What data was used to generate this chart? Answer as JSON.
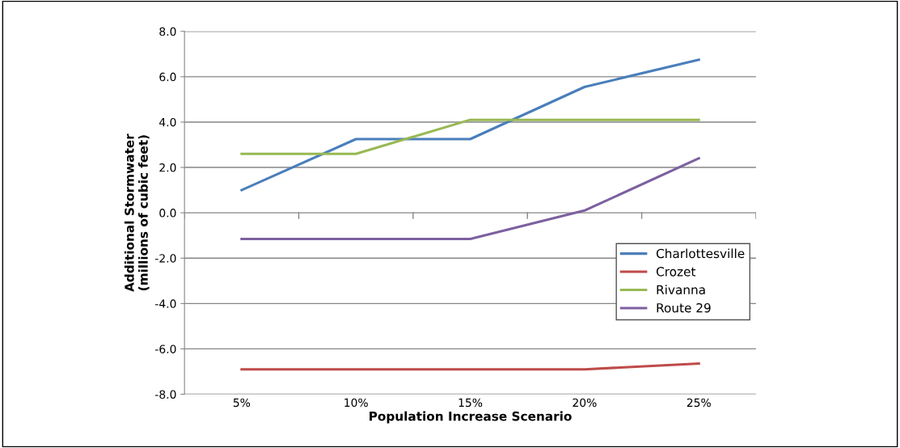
{
  "chart_data": {
    "type": "line",
    "xlabel": "Population Increase Scenario",
    "ylabel": "Additional Stormwater\n(millions of cubic feet)",
    "categories": [
      "5%",
      "10%",
      "15%",
      "20%",
      "25%"
    ],
    "series": [
      {
        "name": "Charlottesville",
        "color": "#4a7ebb",
        "values": [
          1.0,
          3.25,
          3.25,
          5.55,
          6.75
        ]
      },
      {
        "name": "Crozet",
        "color": "#be4b48",
        "values": [
          -6.9,
          -6.9,
          -6.9,
          -6.9,
          -6.65
        ]
      },
      {
        "name": "Rivanna",
        "color": "#98b954",
        "values": [
          2.6,
          2.6,
          4.1,
          4.1,
          4.1
        ]
      },
      {
        "name": "Route 29",
        "color": "#7d60a0",
        "values": [
          -1.15,
          -1.15,
          -1.15,
          0.1,
          2.4
        ]
      }
    ],
    "ylim": [
      -8,
      8
    ],
    "yticks": [
      {
        "value": -8,
        "label": "-8.0"
      },
      {
        "value": -6,
        "label": "-6.0"
      },
      {
        "value": -4,
        "label": "-4.0"
      },
      {
        "value": -2,
        "label": "-2.0"
      },
      {
        "value": 0,
        "label": "0.0"
      },
      {
        "value": 2,
        "label": "2.0"
      },
      {
        "value": 4,
        "label": "4.0"
      },
      {
        "value": 6,
        "label": "6.0"
      },
      {
        "value": 8,
        "label": "8.0"
      }
    ],
    "grid": "y",
    "legend": "right",
    "marker": "none",
    "line_style": "solid"
  }
}
